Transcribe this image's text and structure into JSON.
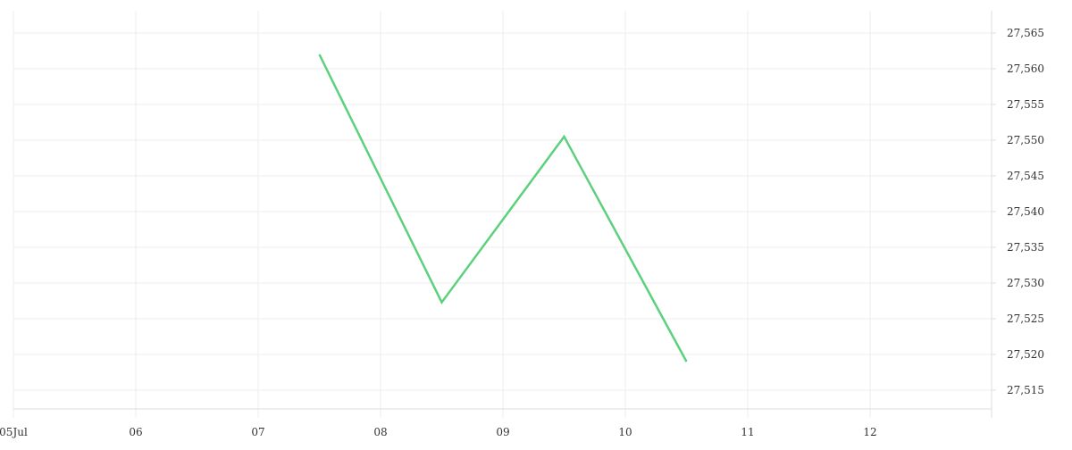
{
  "chart_data": {
    "type": "line",
    "x_tick_labels": [
      "05Jul",
      "06",
      "07",
      "08",
      "09",
      "10",
      "11",
      "12"
    ],
    "x_tick_dates": [
      "2024-07-05",
      "2024-07-06",
      "2024-07-07",
      "2024-07-08",
      "2024-07-09",
      "2024-07-10",
      "2024-07-11",
      "2024-07-12"
    ],
    "y_ticks": [
      27515,
      27520,
      27525,
      27530,
      27535,
      27540,
      27545,
      27550,
      27555,
      27560,
      27565
    ],
    "y_tick_labels": [
      "27,515",
      "27,520",
      "27,525",
      "27,530",
      "27,535",
      "27,540",
      "27,545",
      "27,550",
      "27,555",
      "27,560",
      "27,565"
    ],
    "xlim": [
      "2024-07-05T00:00",
      "2024-07-13T00:00"
    ],
    "ylim": [
      27510,
      27568
    ],
    "grid": true,
    "series": [
      {
        "color": "#5cd17d",
        "points": [
          {
            "x": "2024-07-07T12:00",
            "y": 27562
          },
          {
            "x": "2024-07-08T12:00",
            "y": 27527.3
          },
          {
            "x": "2024-07-09T12:00",
            "y": 27550.5
          },
          {
            "x": "2024-07-10T12:00",
            "y": 27519
          }
        ]
      }
    ],
    "colors": {
      "grid": "#eeeeee",
      "axis": "#dddddd",
      "text": "#333333"
    }
  }
}
